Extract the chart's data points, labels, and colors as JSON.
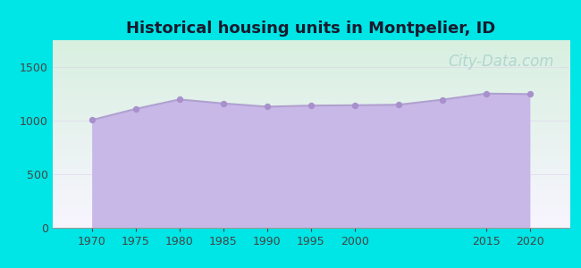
{
  "title": "Historical housing units in Montpelier, ID",
  "title_fontsize": 13,
  "title_fontweight": "bold",
  "title_color": "#1a1a2e",
  "background_color": "#00e5e5",
  "years": [
    1970,
    1975,
    1980,
    1985,
    1990,
    1995,
    2000,
    2005,
    2010,
    2015,
    2020
  ],
  "values": [
    1005,
    1109,
    1197,
    1160,
    1130,
    1140,
    1143,
    1148,
    1195,
    1252,
    1247
  ],
  "area_color": "#c8b8e8",
  "area_alpha": 1.0,
  "line_color": "#b0a0d0",
  "line_width": 1.5,
  "marker_color": "#a890cc",
  "marker_size": 28,
  "ylim": [
    0,
    1750
  ],
  "yticks": [
    0,
    500,
    1000,
    1500
  ],
  "xticks": [
    1970,
    1975,
    1980,
    1985,
    1990,
    1995,
    2000,
    2015,
    2020
  ],
  "tick_fontsize": 9,
  "watermark_text": "City-Data.com",
  "watermark_color": "#90c0c0",
  "watermark_alpha": 0.55,
  "watermark_fontsize": 12,
  "grad_top_color": "#d8f0e0",
  "grad_bottom_color": "#f8f4ff",
  "grad_left_color": "#d0ecd8",
  "grad_right_color": "#f0f0f8"
}
